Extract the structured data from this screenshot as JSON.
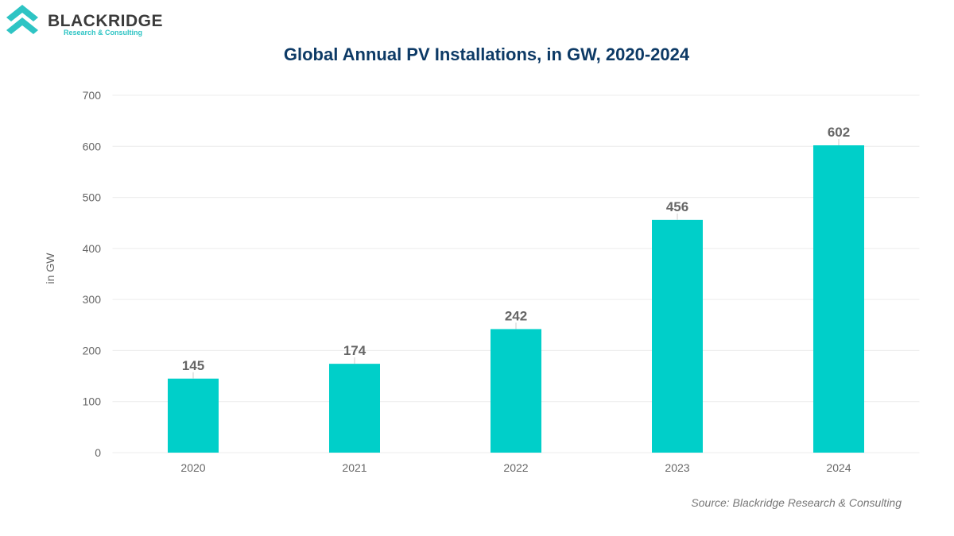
{
  "logo": {
    "name": "BLACKRIDGE",
    "tagline": "Research & Consulting"
  },
  "source": "Source: Blackridge Research & Consulting",
  "colors": {
    "bar": "#00cfc9",
    "title": "#0d3a66",
    "logo_accent": "#2ec4c4"
  },
  "chart_data": {
    "type": "bar",
    "title": "Global Annual PV Installations, in GW, 2020-2024",
    "xlabel": "",
    "ylabel": "in GW",
    "categories": [
      "2020",
      "2021",
      "2022",
      "2023",
      "2024"
    ],
    "values": [
      145,
      174,
      242,
      456,
      602
    ],
    "ylim": [
      0,
      700
    ],
    "yticks": [
      0,
      100,
      200,
      300,
      400,
      500,
      600,
      700
    ],
    "grid": true,
    "data_labels": true,
    "legend": "none"
  }
}
